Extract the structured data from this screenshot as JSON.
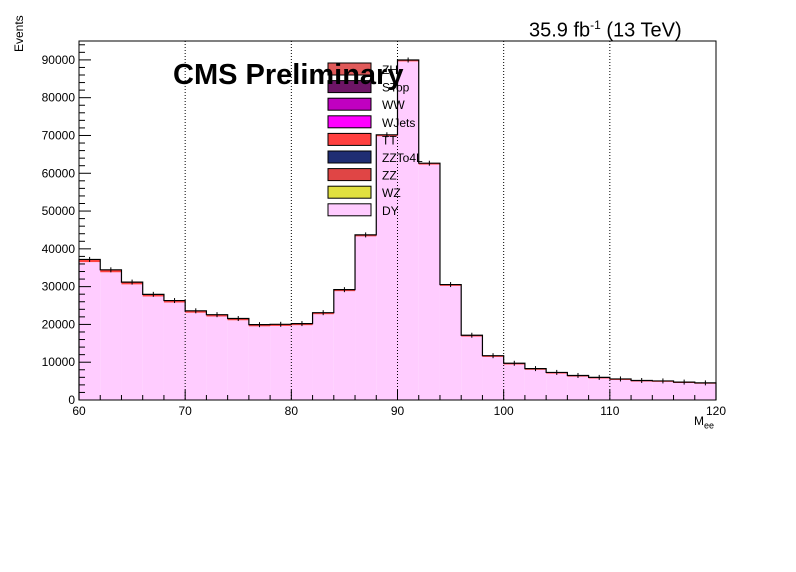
{
  "chart_data": {
    "type": "bar",
    "stacked": true,
    "header": {
      "lumi_value": "35.9 fb",
      "lumi_exp": "-1",
      "lumi_energy": " (13 TeV)",
      "label": "CMS Preliminary"
    },
    "ylabel": "Events",
    "xlabel": {
      "main": "M",
      "sub": "ee"
    },
    "xlim": [
      60,
      120
    ],
    "ylim": [
      0,
      95000
    ],
    "x_ticks": [
      60,
      70,
      80,
      90,
      100,
      110,
      120
    ],
    "y_ticks": [
      0,
      10000,
      20000,
      30000,
      40000,
      50000,
      60000,
      70000,
      80000,
      90000
    ],
    "grid": "vertical-dotted",
    "bin_width": 2,
    "bin_edges": [
      60,
      62,
      64,
      66,
      68,
      70,
      72,
      74,
      76,
      78,
      80,
      82,
      84,
      86,
      88,
      90,
      92,
      94,
      96,
      98,
      100,
      102,
      104,
      106,
      108,
      110,
      112,
      114,
      116,
      118,
      120
    ],
    "legend_position": "top-center",
    "legend": [
      {
        "name": "ZH",
        "color": "#e05a5a"
      },
      {
        "name": "STop",
        "color": "#6e1566"
      },
      {
        "name": "WW",
        "color": "#c000c0"
      },
      {
        "name": "WJets",
        "color": "#ff00ff"
      },
      {
        "name": "TT",
        "color": "#ff4040"
      },
      {
        "name": "ZZTo4L",
        "color": "#1f2d73"
      },
      {
        "name": "ZZ",
        "color": "#e04545"
      },
      {
        "name": "WZ",
        "color": "#e0e040"
      },
      {
        "name": "DY",
        "color": "#ffccff"
      }
    ],
    "series": [
      {
        "name": "DY",
        "color": "#ffccff",
        "values": [
          36500,
          33800,
          30600,
          27400,
          25800,
          23100,
          22100,
          21100,
          19500,
          19600,
          19800,
          22700,
          28800,
          43300,
          69800,
          89600,
          62300,
          30200,
          16800,
          11400,
          9400,
          8000,
          7000,
          6200,
          5700,
          5300,
          4900,
          4800,
          4500,
          4300
        ]
      },
      {
        "name": "TT",
        "color": "#ff4040",
        "values": [
          700,
          650,
          600,
          560,
          520,
          500,
          480,
          460,
          440,
          430,
          420,
          410,
          400,
          390,
          380,
          370,
          360,
          350,
          340,
          330,
          320,
          310,
          300,
          290,
          280,
          270,
          260,
          250,
          240,
          230
        ]
      }
    ]
  }
}
